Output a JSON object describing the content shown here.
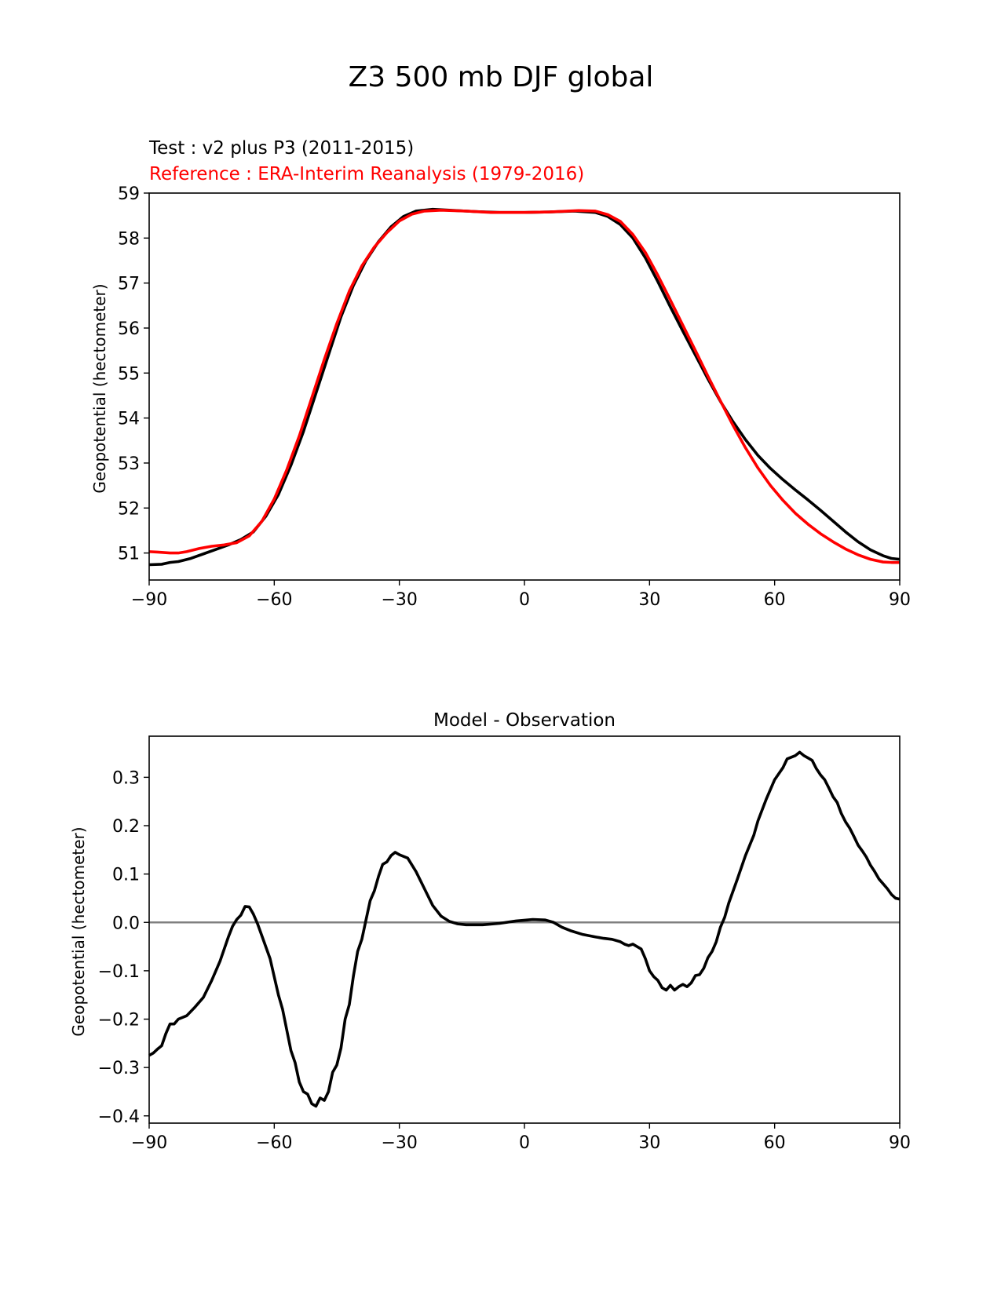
{
  "figure": {
    "title": "Z3 500 mb DJF global"
  },
  "chart_data": [
    {
      "type": "line",
      "test_label": "Test : v2 plus P3 (2011-2015)",
      "reference_label": "Reference : ERA-Interim Reanalysis (1979-2016)",
      "ylabel": "Geopotential (hectometer)",
      "xlabel": "",
      "xlim": [
        -90,
        90
      ],
      "ylim": [
        50.4,
        59.0
      ],
      "xticks": [
        -90,
        -60,
        -30,
        0,
        30,
        60,
        90
      ],
      "xtick_labels": [
        "−90",
        "−60",
        "−30",
        "0",
        "30",
        "60",
        "90"
      ],
      "yticks": [
        51,
        52,
        53,
        54,
        55,
        56,
        57,
        58,
        59
      ],
      "ytick_labels": [
        "51",
        "52",
        "53",
        "54",
        "55",
        "56",
        "57",
        "58",
        "59"
      ],
      "grid": false,
      "series": [
        {
          "color": "#000000",
          "points": [
            [
              -90,
              50.74
            ],
            [
              -87,
              50.75
            ],
            [
              -85,
              50.79
            ],
            [
              -83,
              50.81
            ],
            [
              -80,
              50.88
            ],
            [
              -77,
              50.98
            ],
            [
              -74,
              51.08
            ],
            [
              -71,
              51.18
            ],
            [
              -68,
              51.3
            ],
            [
              -65,
              51.47
            ],
            [
              -62,
              51.82
            ],
            [
              -59,
              52.3
            ],
            [
              -56,
              52.95
            ],
            [
              -53,
              53.7
            ],
            [
              -50,
              54.55
            ],
            [
              -47,
              55.4
            ],
            [
              -44,
              56.25
            ],
            [
              -41,
              56.95
            ],
            [
              -38,
              57.5
            ],
            [
              -35,
              57.92
            ],
            [
              -32,
              58.25
            ],
            [
              -29,
              58.48
            ],
            [
              -26,
              58.6
            ],
            [
              -22,
              58.64
            ],
            [
              -18,
              58.62
            ],
            [
              -12,
              58.59
            ],
            [
              -6,
              58.57
            ],
            [
              0,
              58.57
            ],
            [
              6,
              58.58
            ],
            [
              12,
              58.6
            ],
            [
              17,
              58.57
            ],
            [
              20,
              58.48
            ],
            [
              23,
              58.3
            ],
            [
              26,
              58.0
            ],
            [
              29,
              57.56
            ],
            [
              32,
              57.03
            ],
            [
              35,
              56.47
            ],
            [
              38,
              55.93
            ],
            [
              41,
              55.4
            ],
            [
              44,
              54.87
            ],
            [
              47,
              54.37
            ],
            [
              50,
              53.92
            ],
            [
              53,
              53.52
            ],
            [
              56,
              53.17
            ],
            [
              59,
              52.88
            ],
            [
              62,
              52.63
            ],
            [
              65,
              52.4
            ],
            [
              68,
              52.18
            ],
            [
              71,
              51.95
            ],
            [
              74,
              51.71
            ],
            [
              77,
              51.47
            ],
            [
              80,
              51.25
            ],
            [
              83,
              51.07
            ],
            [
              86,
              50.94
            ],
            [
              88,
              50.88
            ],
            [
              90,
              50.86
            ]
          ]
        },
        {
          "color": "#ff0000",
          "points": [
            [
              -90,
              51.03
            ],
            [
              -88,
              51.02
            ],
            [
              -85,
              51.0
            ],
            [
              -83,
              51.0
            ],
            [
              -81,
              51.03
            ],
            [
              -78,
              51.1
            ],
            [
              -75,
              51.15
            ],
            [
              -72,
              51.18
            ],
            [
              -69,
              51.23
            ],
            [
              -66,
              51.38
            ],
            [
              -63,
              51.7
            ],
            [
              -60,
              52.2
            ],
            [
              -57,
              52.85
            ],
            [
              -54,
              53.6
            ],
            [
              -51,
              54.45
            ],
            [
              -48,
              55.3
            ],
            [
              -45,
              56.1
            ],
            [
              -42,
              56.82
            ],
            [
              -39,
              57.38
            ],
            [
              -36,
              57.8
            ],
            [
              -33,
              58.12
            ],
            [
              -30,
              58.38
            ],
            [
              -27,
              58.53
            ],
            [
              -24,
              58.6
            ],
            [
              -20,
              58.62
            ],
            [
              -14,
              58.6
            ],
            [
              -8,
              58.57
            ],
            [
              0,
              58.57
            ],
            [
              6,
              58.58
            ],
            [
              13,
              58.61
            ],
            [
              17,
              58.6
            ],
            [
              20,
              58.52
            ],
            [
              23,
              58.37
            ],
            [
              26,
              58.08
            ],
            [
              29,
              57.68
            ],
            [
              32,
              57.17
            ],
            [
              35,
              56.62
            ],
            [
              38,
              56.06
            ],
            [
              41,
              55.5
            ],
            [
              44,
              54.93
            ],
            [
              47,
              54.38
            ],
            [
              50,
              53.84
            ],
            [
              53,
              53.34
            ],
            [
              56,
              52.89
            ],
            [
              59,
              52.5
            ],
            [
              62,
              52.17
            ],
            [
              65,
              51.88
            ],
            [
              68,
              51.64
            ],
            [
              71,
              51.43
            ],
            [
              74,
              51.25
            ],
            [
              77,
              51.09
            ],
            [
              80,
              50.96
            ],
            [
              83,
              50.86
            ],
            [
              86,
              50.8
            ],
            [
              88,
              50.79
            ],
            [
              90,
              50.79
            ]
          ]
        }
      ]
    },
    {
      "type": "line",
      "title": "Model - Observation",
      "ylabel": "Geopotential (hectometer)",
      "xlabel": "",
      "xlim": [
        -90,
        90
      ],
      "ylim": [
        -0.415,
        0.385
      ],
      "xticks": [
        -90,
        -60,
        -30,
        0,
        30,
        60,
        90
      ],
      "xtick_labels": [
        "−90",
        "−60",
        "−30",
        "0",
        "30",
        "60",
        "90"
      ],
      "yticks": [
        -0.4,
        -0.3,
        -0.2,
        -0.1,
        0.0,
        0.1,
        0.2,
        0.3
      ],
      "ytick_labels": [
        "−0.4",
        "−0.3",
        "−0.2",
        "−0.1",
        "0.0",
        "0.1",
        "0.2",
        "0.3"
      ],
      "grid": false,
      "reference_line": {
        "y": 0.0,
        "color": "#808080"
      },
      "series": [
        {
          "color": "#000000",
          "points": [
            [
              -90,
              -0.275
            ],
            [
              -89,
              -0.27
            ],
            [
              -88,
              -0.262
            ],
            [
              -87,
              -0.255
            ],
            [
              -86,
              -0.23
            ],
            [
              -85,
              -0.21
            ],
            [
              -84,
              -0.21
            ],
            [
              -83,
              -0.2
            ],
            [
              -81,
              -0.193
            ],
            [
              -79,
              -0.175
            ],
            [
              -77,
              -0.155
            ],
            [
              -75,
              -0.12
            ],
            [
              -73,
              -0.08
            ],
            [
              -71,
              -0.03
            ],
            [
              -70,
              -0.008
            ],
            [
              -69,
              0.006
            ],
            [
              -68,
              0.015
            ],
            [
              -67,
              0.033
            ],
            [
              -66,
              0.032
            ],
            [
              -65,
              0.017
            ],
            [
              -64,
              -0.003
            ],
            [
              -63,
              -0.027
            ],
            [
              -61,
              -0.075
            ],
            [
              -59,
              -0.15
            ],
            [
              -58,
              -0.18
            ],
            [
              -56,
              -0.265
            ],
            [
              -55,
              -0.29
            ],
            [
              -54,
              -0.33
            ],
            [
              -53,
              -0.35
            ],
            [
              -52,
              -0.355
            ],
            [
              -51,
              -0.375
            ],
            [
              -50,
              -0.38
            ],
            [
              -49,
              -0.363
            ],
            [
              -48,
              -0.368
            ],
            [
              -47,
              -0.35
            ],
            [
              -46,
              -0.31
            ],
            [
              -45,
              -0.295
            ],
            [
              -44,
              -0.26
            ],
            [
              -43,
              -0.2
            ],
            [
              -42,
              -0.17
            ],
            [
              -41,
              -0.11
            ],
            [
              -40,
              -0.06
            ],
            [
              -39,
              -0.035
            ],
            [
              -38,
              0.005
            ],
            [
              -37,
              0.045
            ],
            [
              -36,
              0.065
            ],
            [
              -35,
              0.095
            ],
            [
              -34,
              0.12
            ],
            [
              -33,
              0.125
            ],
            [
              -32,
              0.138
            ],
            [
              -31,
              0.145
            ],
            [
              -30,
              0.14
            ],
            [
              -28,
              0.133
            ],
            [
              -26,
              0.105
            ],
            [
              -24,
              0.07
            ],
            [
              -22,
              0.035
            ],
            [
              -20,
              0.013
            ],
            [
              -18,
              0.002
            ],
            [
              -16,
              -0.003
            ],
            [
              -14,
              -0.005
            ],
            [
              -10,
              -0.005
            ],
            [
              -6,
              -0.002
            ],
            [
              -2,
              0.003
            ],
            [
              2,
              0.006
            ],
            [
              5,
              0.005
            ],
            [
              7,
              0.0
            ],
            [
              9,
              -0.01
            ],
            [
              11,
              -0.017
            ],
            [
              14,
              -0.025
            ],
            [
              17,
              -0.03
            ],
            [
              19,
              -0.033
            ],
            [
              21,
              -0.035
            ],
            [
              23,
              -0.04
            ],
            [
              24,
              -0.045
            ],
            [
              25,
              -0.048
            ],
            [
              26,
              -0.045
            ],
            [
              27,
              -0.05
            ],
            [
              28,
              -0.055
            ],
            [
              29,
              -0.075
            ],
            [
              30,
              -0.1
            ],
            [
              31,
              -0.112
            ],
            [
              32,
              -0.12
            ],
            [
              33,
              -0.135
            ],
            [
              34,
              -0.14
            ],
            [
              35,
              -0.13
            ],
            [
              36,
              -0.14
            ],
            [
              37,
              -0.133
            ],
            [
              38,
              -0.128
            ],
            [
              39,
              -0.133
            ],
            [
              40,
              -0.125
            ],
            [
              41,
              -0.11
            ],
            [
              42,
              -0.108
            ],
            [
              43,
              -0.095
            ],
            [
              44,
              -0.073
            ],
            [
              45,
              -0.06
            ],
            [
              46,
              -0.04
            ],
            [
              47,
              -0.01
            ],
            [
              48,
              0.01
            ],
            [
              49,
              0.04
            ],
            [
              51,
              0.088
            ],
            [
              53,
              0.138
            ],
            [
              55,
              0.18
            ],
            [
              56,
              0.21
            ],
            [
              58,
              0.255
            ],
            [
              60,
              0.295
            ],
            [
              62,
              0.32
            ],
            [
              63,
              0.338
            ],
            [
              65,
              0.345
            ],
            [
              66,
              0.352
            ],
            [
              67,
              0.345
            ],
            [
              68,
              0.34
            ],
            [
              69,
              0.335
            ],
            [
              70,
              0.318
            ],
            [
              71,
              0.305
            ],
            [
              72,
              0.295
            ],
            [
              73,
              0.278
            ],
            [
              74,
              0.26
            ],
            [
              75,
              0.248
            ],
            [
              76,
              0.225
            ],
            [
              77,
              0.208
            ],
            [
              78,
              0.195
            ],
            [
              79,
              0.178
            ],
            [
              80,
              0.16
            ],
            [
              81,
              0.148
            ],
            [
              82,
              0.135
            ],
            [
              83,
              0.118
            ],
            [
              84,
              0.105
            ],
            [
              85,
              0.09
            ],
            [
              86,
              0.08
            ],
            [
              87,
              0.07
            ],
            [
              88,
              0.058
            ],
            [
              89,
              0.05
            ],
            [
              90,
              0.048
            ]
          ]
        }
      ]
    }
  ]
}
